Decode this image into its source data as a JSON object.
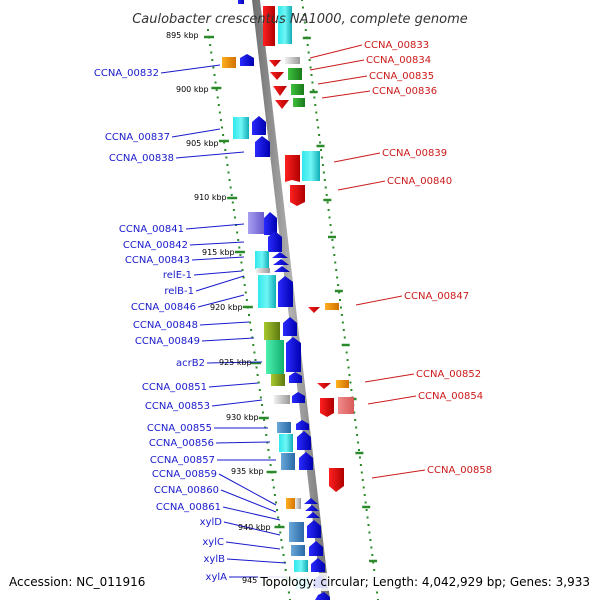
{
  "title": "Caulobacter crescentus NA1000, complete genome",
  "footer": {
    "accession": "Accession: NC_011916",
    "topology": "Topology: circular; Length: 4,042,929 bp; Genes: 3,933"
  },
  "colors": {
    "reverse_label": "#1a1acc",
    "forward_label": "#cc1a1a",
    "backbone": "#888888",
    "tick": "#2a8a2a"
  },
  "kbp_labels": [
    "895 kbp",
    "900 kbp",
    "905 kbp",
    "910 kbp",
    "915 kbp",
    "920 kbp",
    "925 kbp",
    "930 kbp",
    "935 kbp",
    "940 kbp",
    "945"
  ],
  "left_labels": [
    "CCNA_00832",
    "CCNA_00837",
    "CCNA_00838",
    "CCNA_00841",
    "CCNA_00842",
    "CCNA_00843",
    "relE-1",
    "relB-1",
    "CCNA_00846",
    "CCNA_00848",
    "CCNA_00849",
    "acrB2",
    "CCNA_00851",
    "CCNA_00853",
    "CCNA_00855",
    "CCNA_00856",
    "CCNA_00857",
    "CCNA_00859",
    "CCNA_00860",
    "CCNA_00861",
    "xylD",
    "xylC",
    "xylB",
    "xylA"
  ],
  "right_labels": [
    "CCNA_00833",
    "CCNA_00834",
    "CCNA_00835",
    "CCNA_00836",
    "CCNA_00839",
    "CCNA_00840",
    "CCNA_00847",
    "CCNA_00852",
    "CCNA_00854",
    "CCNA_00858"
  ]
}
